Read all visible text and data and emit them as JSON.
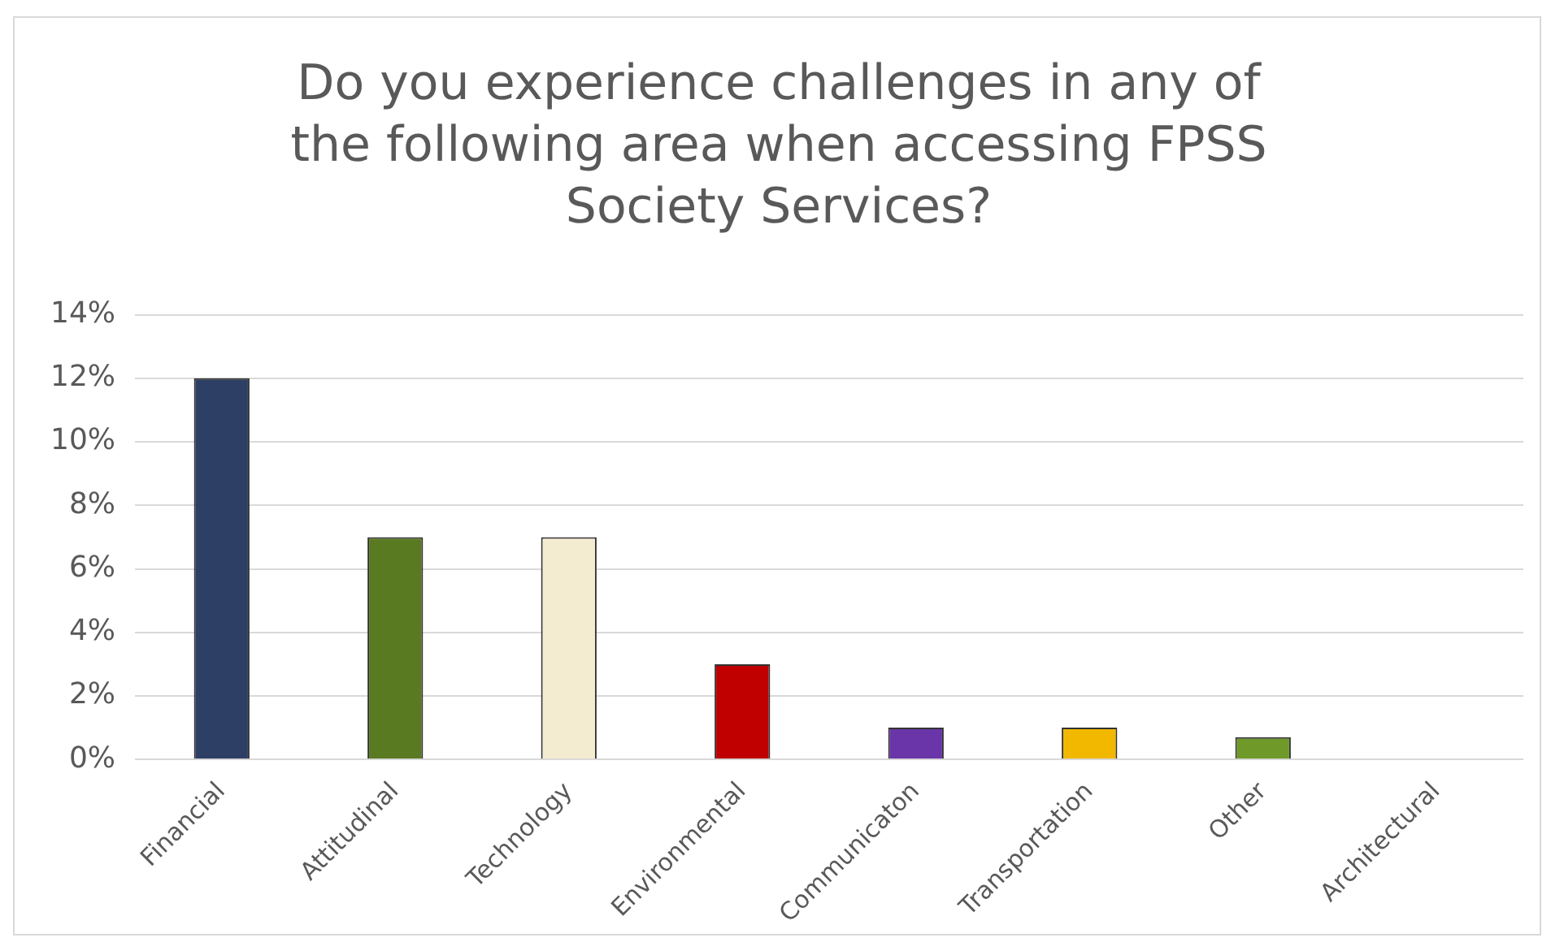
{
  "chart_data": {
    "type": "bar",
    "title": "Do you experience challenges in any of the following area when accessing FPSS Society Services?",
    "categories": [
      "Financial",
      "Attitudinal",
      "Technology",
      "Environmental",
      "Communicaton",
      "Transportation",
      "Other",
      "Architectural"
    ],
    "values": [
      12,
      7,
      7,
      3,
      1,
      1,
      0.7,
      0
    ],
    "colors": [
      "#2e3f66",
      "#5a7a22",
      "#f3ecd0",
      "#c00000",
      "#6a35a8",
      "#f2b800",
      "#6f9a2a",
      "#999999"
    ],
    "ylim": [
      0,
      14
    ],
    "yticks": [
      {
        "value": 0,
        "label": "0%"
      },
      {
        "value": 2,
        "label": "2%"
      },
      {
        "value": 4,
        "label": "4%"
      },
      {
        "value": 6,
        "label": "6%"
      },
      {
        "value": 8,
        "label": "8%"
      },
      {
        "value": 10,
        "label": "10%"
      },
      {
        "value": 12,
        "label": "12%"
      },
      {
        "value": 14,
        "label": "14%"
      }
    ],
    "grid": "y",
    "legend": false
  }
}
